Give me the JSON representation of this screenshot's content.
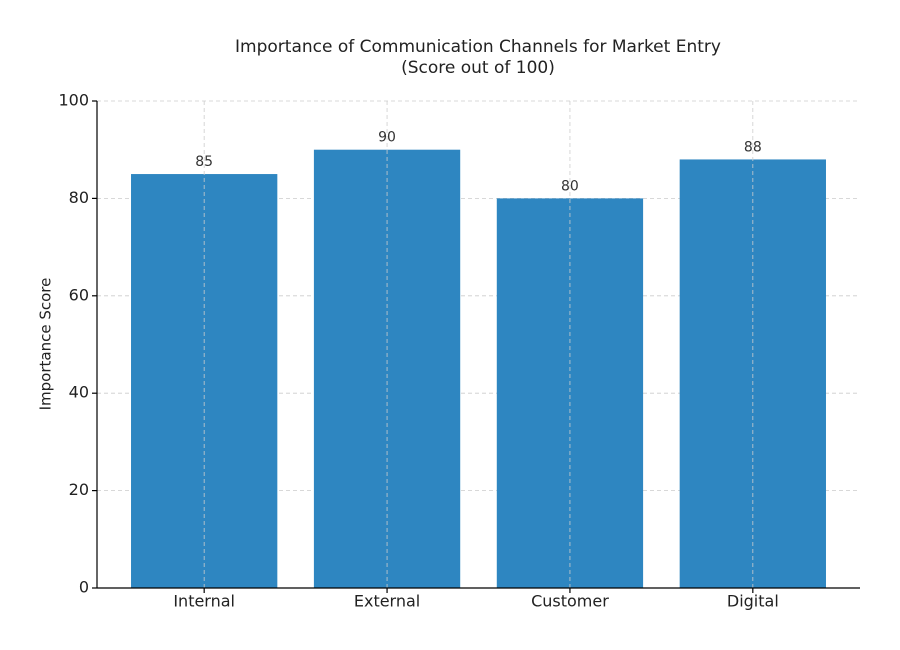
{
  "chart_data": {
    "type": "bar",
    "title": "Importance of Communication Channels for Market Entry",
    "subtitle": "(Score out of 100)",
    "y_label": "Importance Score",
    "categories": [
      "Internal",
      "External",
      "Customer",
      "Digital"
    ],
    "values": [
      85,
      90,
      80,
      88
    ],
    "color": "#2e86c1",
    "ylim": [
      0,
      100
    ],
    "yticks": [
      0,
      20,
      40,
      60,
      80,
      100
    ],
    "grid": true
  }
}
